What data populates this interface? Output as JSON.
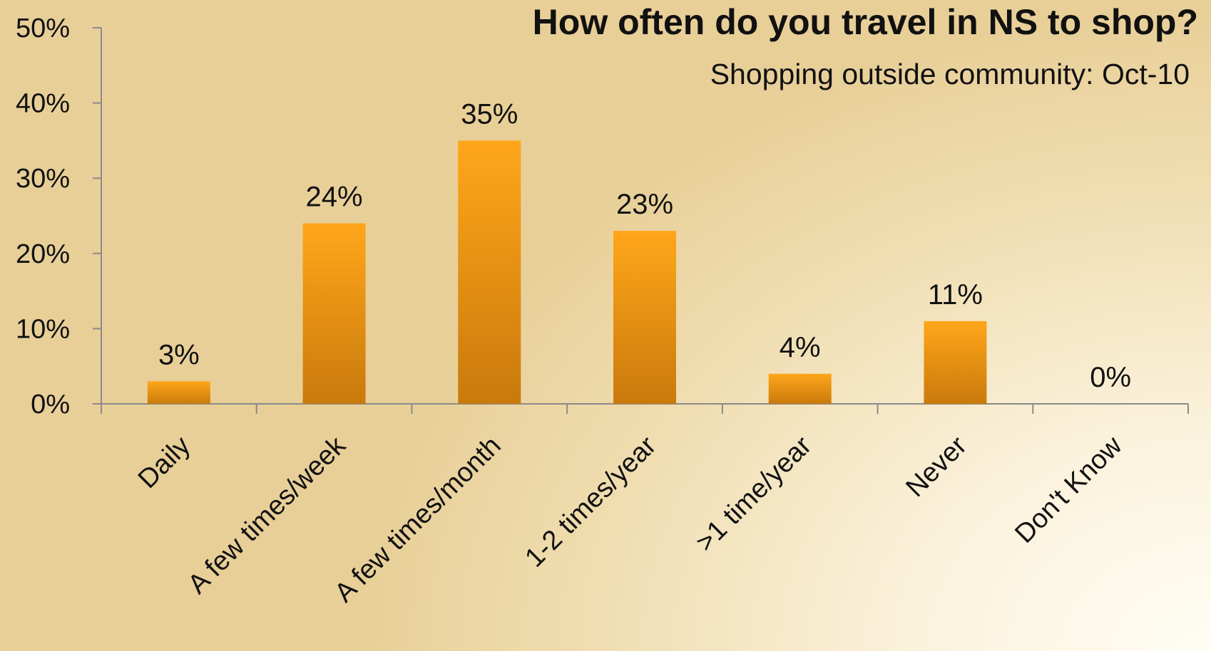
{
  "chart_data": {
    "type": "bar",
    "title": "How often do you travel in NS to shop?",
    "subtitle": "Shopping outside community: Oct-10",
    "categories": [
      "Daily",
      "A few times/week",
      "A few times/month",
      "1-2 times/year",
      ">1 time/year",
      "Never",
      "Don't Know"
    ],
    "values": [
      3,
      24,
      35,
      23,
      4,
      11,
      0
    ],
    "data_labels": [
      "3%",
      "24%",
      "35%",
      "23%",
      "4%",
      "11%",
      "0%"
    ],
    "y_ticks": [
      "0%",
      "10%",
      "20%",
      "30%",
      "40%",
      "50%"
    ],
    "ylim": [
      0,
      50
    ],
    "grid": false,
    "legend": "none",
    "colors": {
      "bar_top": "#ffa61a",
      "bar_bottom": "#c97a0c",
      "axis": "#8a8a8a"
    }
  }
}
